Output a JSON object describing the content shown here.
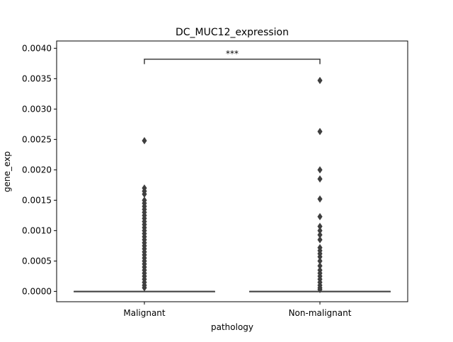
{
  "chart_data": {
    "type": "box",
    "title": "DC_MUC12_expression",
    "xlabel": "pathology",
    "ylabel": "gene_exp",
    "categories": [
      "Malignant",
      "Non-malignant"
    ],
    "ylim": [
      -0.00017,
      0.00412
    ],
    "yticks": [
      "0.0000",
      "0.0005",
      "0.0010",
      "0.0015",
      "0.0020",
      "0.0025",
      "0.0030",
      "0.0035",
      "0.0040"
    ],
    "ytick_values": [
      0.0,
      0.0005,
      0.001,
      0.0015,
      0.002,
      0.0025,
      0.003,
      0.0035,
      0.004
    ],
    "grid": false,
    "boxes": [
      {
        "category": "Malignant",
        "q1": 0.0,
        "median": 0.0,
        "q3": 0.0,
        "whisker_low": 0.0,
        "whisker_high": 0.0,
        "outliers": [
          0.00248,
          0.0017,
          0.00165,
          0.0016,
          0.0015,
          0.00145,
          0.0014,
          0.00135,
          0.0013,
          0.00125,
          0.0012,
          0.00115,
          0.0011,
          0.00105,
          0.001,
          0.00095,
          0.0009,
          0.00085,
          0.0008,
          0.00075,
          0.0007,
          0.00065,
          0.0006,
          0.00055,
          0.0005,
          0.00045,
          0.0004,
          0.00035,
          0.0003,
          0.00025,
          0.0002,
          0.00015,
          0.0001,
          6e-05
        ]
      },
      {
        "category": "Non-malignant",
        "q1": 0.0,
        "median": 0.0,
        "q3": 0.0,
        "whisker_low": 0.0,
        "whisker_high": 0.0,
        "outliers": [
          0.00347,
          0.00263,
          0.002,
          0.00185,
          0.00152,
          0.00123,
          0.00107,
          0.001,
          0.00093,
          0.00085,
          0.00072,
          0.00067,
          0.00062,
          0.00057,
          0.0005,
          0.00042,
          0.00035,
          0.0003,
          0.00025,
          0.0002,
          0.00015,
          0.0001,
          6e-05,
          3e-05
        ]
      }
    ],
    "annotation": {
      "text": "***",
      "y": 0.00382,
      "from": "Malignant",
      "to": "Non-malignant"
    }
  },
  "colors": {
    "box_line": "#3f3f3f",
    "outlier_fill": "#3f3f3f",
    "axis": "#000000"
  }
}
